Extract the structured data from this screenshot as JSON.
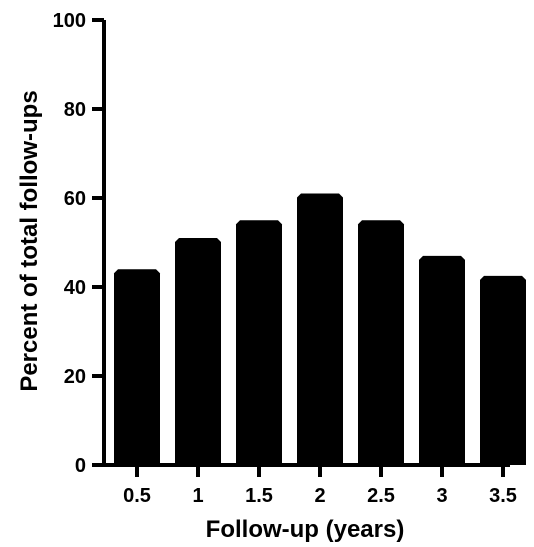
{
  "chart_data": {
    "type": "bar",
    "title": "",
    "xlabel": "Follow-up (years)",
    "ylabel": "Percent of total follow-ups",
    "categories": [
      "0.5",
      "1",
      "1.5",
      "2",
      "2.5",
      "3",
      "3.5"
    ],
    "values": [
      44,
      51,
      55,
      61,
      55,
      47,
      42.5
    ],
    "ylim": [
      0,
      100
    ],
    "yticks": [
      "0",
      "20",
      "40",
      "60",
      "80",
      "100"
    ],
    "grid": false,
    "legend": "none",
    "bar_color": "#000000",
    "axis_color": "#000000"
  }
}
